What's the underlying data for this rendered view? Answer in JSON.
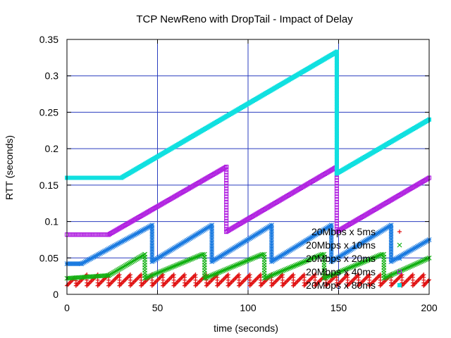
{
  "chart_data": {
    "type": "scatter",
    "title": "TCP NewReno with DropTail - Impact of Delay",
    "xlabel": "time (seconds)",
    "ylabel": "RTT (seconds)",
    "xlim": [
      0,
      200
    ],
    "ylim": [
      0,
      0.35
    ],
    "xticks": [
      0,
      50,
      100,
      150,
      200
    ],
    "yticks": [
      0,
      0.05,
      0.1,
      0.15,
      0.2,
      0.25,
      0.3,
      0.35
    ],
    "grid": true,
    "grid_color": "#2a3dbf",
    "legend_position": "bottom-right",
    "series": [
      {
        "name": "20Mbps x 5ms",
        "marker": "plus",
        "color": "#e01010",
        "ramps": [
          [
            0,
            0.012,
            4,
            0.022
          ],
          [
            5,
            0.012,
            11,
            0.027
          ],
          [
            11,
            0.012,
            17,
            0.027
          ],
          [
            17,
            0.012,
            23,
            0.027
          ],
          [
            23,
            0.012,
            29,
            0.027
          ],
          [
            29,
            0.012,
            35,
            0.027
          ],
          [
            35,
            0.012,
            41,
            0.027
          ],
          [
            41,
            0.012,
            47,
            0.027
          ],
          [
            47,
            0.012,
            53,
            0.027
          ],
          [
            53,
            0.012,
            59,
            0.027
          ],
          [
            59,
            0.012,
            65,
            0.027
          ],
          [
            65,
            0.012,
            71,
            0.027
          ],
          [
            71,
            0.012,
            77,
            0.027
          ],
          [
            77,
            0.012,
            83,
            0.027
          ],
          [
            83,
            0.012,
            89,
            0.027
          ],
          [
            89,
            0.012,
            95,
            0.027
          ],
          [
            95,
            0.012,
            101,
            0.027
          ],
          [
            101,
            0.012,
            107,
            0.027
          ],
          [
            107,
            0.012,
            113,
            0.027
          ],
          [
            113,
            0.012,
            119,
            0.027
          ],
          [
            119,
            0.012,
            125,
            0.027
          ],
          [
            125,
            0.012,
            131,
            0.027
          ],
          [
            131,
            0.012,
            137,
            0.027
          ],
          [
            137,
            0.012,
            143,
            0.027
          ],
          [
            143,
            0.012,
            149,
            0.027
          ],
          [
            149,
            0.012,
            155,
            0.027
          ],
          [
            155,
            0.012,
            161,
            0.027
          ],
          [
            161,
            0.012,
            167,
            0.027
          ],
          [
            167,
            0.012,
            173,
            0.027
          ],
          [
            173,
            0.012,
            179,
            0.027
          ],
          [
            179,
            0.012,
            185,
            0.027
          ],
          [
            185,
            0.012,
            191,
            0.027
          ],
          [
            191,
            0.012,
            197,
            0.027
          ],
          [
            197,
            0.012,
            200,
            0.02
          ]
        ]
      },
      {
        "name": "20Mbps x 10ms",
        "marker": "cross",
        "color": "#10b010",
        "ramps": [
          [
            0,
            0.022,
            23,
            0.026
          ],
          [
            23,
            0.026,
            43,
            0.055
          ],
          [
            43,
            0.022,
            75,
            0.055
          ],
          [
            76,
            0.022,
            108,
            0.055
          ],
          [
            109,
            0.022,
            141,
            0.055
          ],
          [
            142,
            0.022,
            174,
            0.055
          ],
          [
            175,
            0.022,
            200,
            0.05
          ]
        ]
      },
      {
        "name": "20Mbps x 20ms",
        "marker": "star",
        "color": "#1a7ae0",
        "ramps": [
          [
            0,
            0.042,
            8,
            0.042
          ],
          [
            8,
            0.042,
            47,
            0.095
          ],
          [
            47,
            0.045,
            80,
            0.095
          ],
          [
            80,
            0.045,
            113,
            0.095
          ],
          [
            113,
            0.045,
            146,
            0.095
          ],
          [
            146,
            0.045,
            179,
            0.095
          ],
          [
            179,
            0.045,
            200,
            0.075
          ]
        ]
      },
      {
        "name": "20Mbps x 40ms",
        "marker": "square-open",
        "color": "#b020e0",
        "ramps": [
          [
            0,
            0.082,
            23,
            0.082
          ],
          [
            23,
            0.082,
            88,
            0.175
          ],
          [
            88,
            0.086,
            149,
            0.175
          ],
          [
            149,
            0.086,
            200,
            0.16
          ]
        ]
      },
      {
        "name": "20Mbps x 80ms",
        "marker": "square-filled",
        "color": "#10e0e0",
        "ramps": [
          [
            0,
            0.16,
            30,
            0.16
          ],
          [
            30,
            0.16,
            149,
            0.333
          ],
          [
            149,
            0.166,
            200,
            0.24
          ]
        ]
      }
    ]
  }
}
